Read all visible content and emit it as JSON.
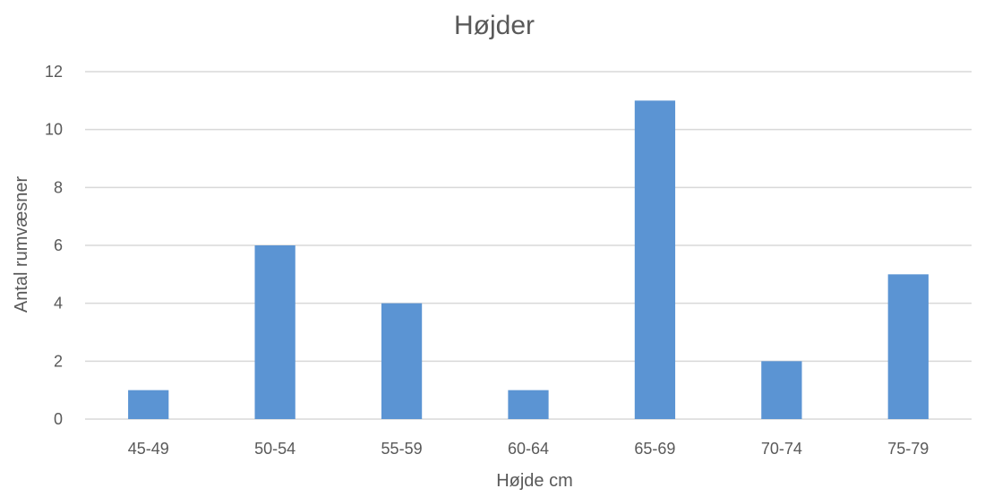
{
  "chart_data": {
    "type": "bar",
    "title": "Højder",
    "xlabel": "Højde cm",
    "ylabel": "Antal rumvæsner",
    "categories": [
      "45-49",
      "50-54",
      "55-59",
      "60-64",
      "65-69",
      "70-74",
      "75-79"
    ],
    "values": [
      1,
      6,
      4,
      1,
      11,
      2,
      5
    ],
    "ylim": [
      0,
      12
    ],
    "yticks": [
      "0",
      "2",
      "4",
      "6",
      "8",
      "10",
      "12"
    ],
    "grid": true,
    "legend": "none",
    "bar_color": "#5b94d3"
  }
}
